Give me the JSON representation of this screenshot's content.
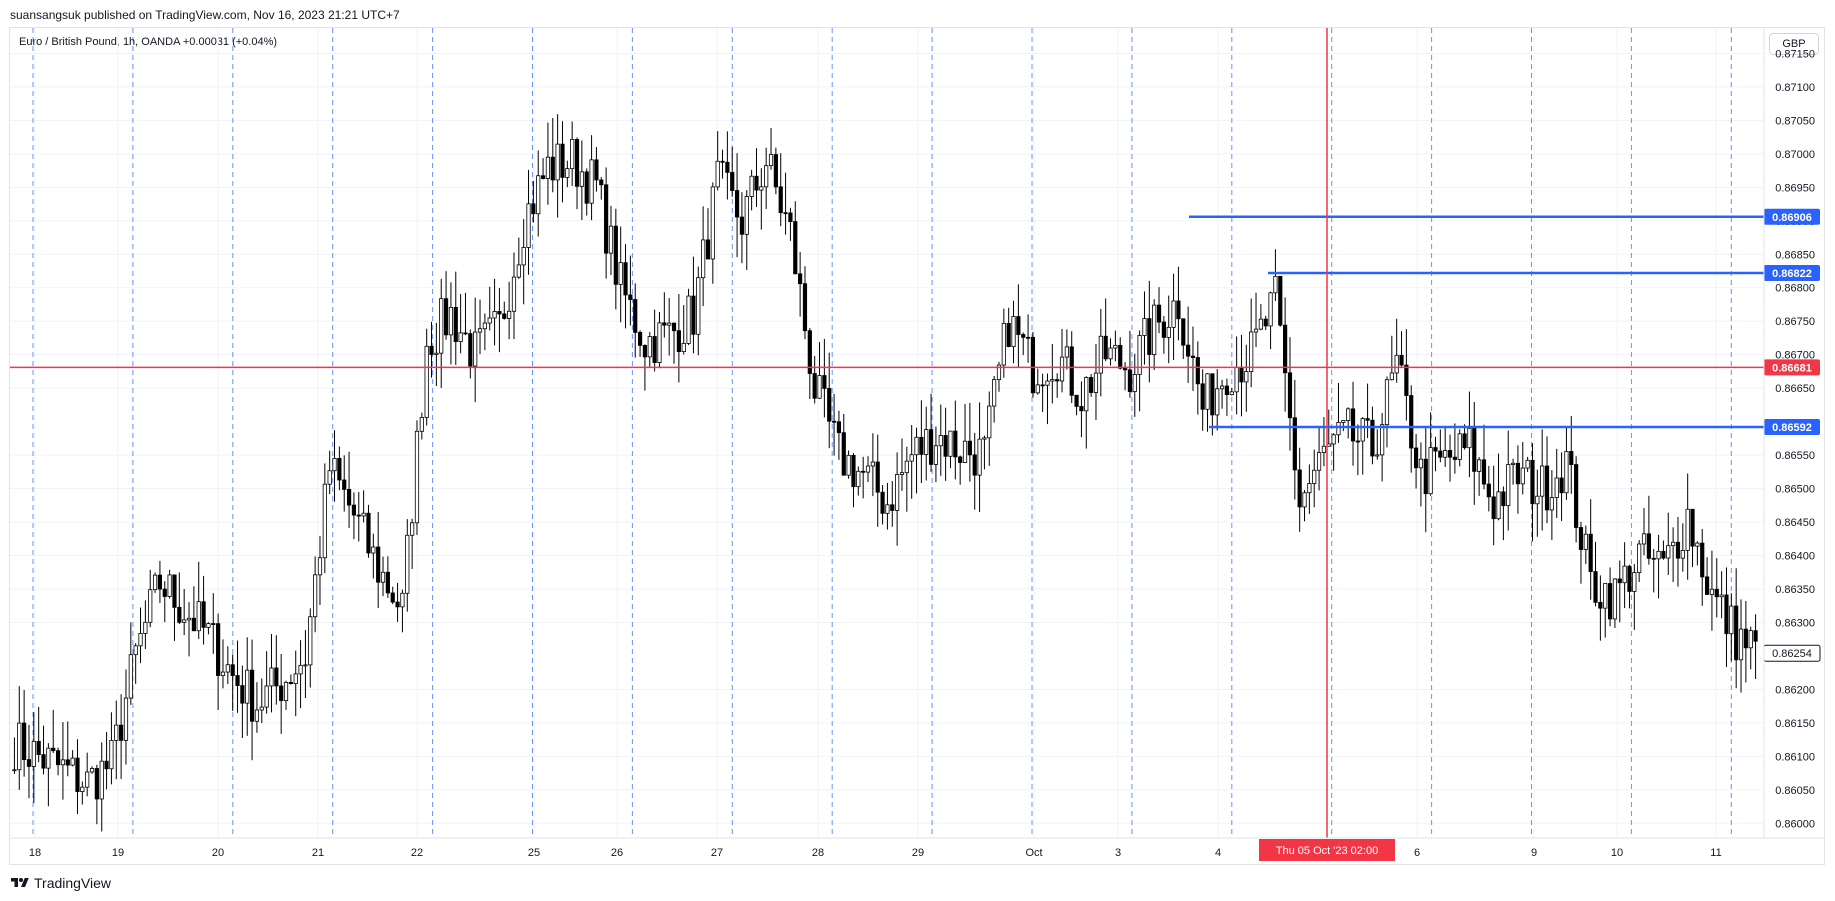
{
  "header": {
    "publish_text": "suansangsuk published on TradingView.com, Nov 16, 2023 21:21 UTC+7",
    "symbol_text": "Euro / British Pound, 1h, OANDA  +0.00031 (+0.04%)",
    "currency": "GBP"
  },
  "footer": {
    "brand": "TradingView",
    "logo_icon": "tradingview-logo-icon"
  },
  "colors": {
    "candle": "#000000",
    "grid": "#f0f3fa",
    "session_line": "#2962ff",
    "level_line": "#2962ff",
    "hline_red": "#f23645",
    "crosshair": "#f23645",
    "last_price_border": "#131722"
  },
  "chart_data": {
    "type": "candlestick",
    "symbol": "Euro / British Pound",
    "interval": "1h",
    "exchange": "OANDA",
    "change": "+0.00031",
    "change_pct": "+0.04%",
    "ylim": [
      0.85978,
      0.87188
    ],
    "y_ticks": [
      "0.87150",
      "0.87100",
      "0.87050",
      "0.87000",
      "0.86950",
      "0.86900",
      "0.86850",
      "0.86800",
      "0.86750",
      "0.86700",
      "0.86650",
      "0.86550",
      "0.86500",
      "0.86450",
      "0.86400",
      "0.86350",
      "0.86300",
      "0.86200",
      "0.86150",
      "0.86100",
      "0.86050",
      "0.86000"
    ],
    "x_ticks": [
      "18",
      "19",
      "20",
      "21",
      "22",
      "25",
      "26",
      "27",
      "28",
      "29",
      "Oct",
      "3",
      "4",
      "6",
      "9",
      "10",
      "11"
    ],
    "crosshair_label": "Thu 05 Oct '23   02:00",
    "crosshair_price": 0.86681,
    "horizontal_levels": [
      {
        "value": 0.86906,
        "label": "0.86906",
        "style": "blue",
        "start": "Oct 3"
      },
      {
        "value": 0.86822,
        "label": "0.86822",
        "style": "blue",
        "start": "Oct 4"
      },
      {
        "value": 0.86681,
        "label": "0.86681",
        "style": "red",
        "start": "Sep 18"
      },
      {
        "value": 0.86592,
        "label": "0.86592",
        "style": "blue",
        "start": "Oct 3"
      }
    ],
    "last_price": {
      "value": 0.86254,
      "label": "0.86254"
    },
    "session_separators": 18,
    "closes_by_day": [
      {
        "day": "18",
        "closes": [
          0.8612,
          0.861,
          0.8608,
          0.8606,
          0.8609
        ]
      },
      {
        "day": "19",
        "closes": [
          0.8609,
          0.8625,
          0.8636,
          0.8632,
          0.8628
        ]
      },
      {
        "day": "20",
        "closes": [
          0.8628,
          0.8622,
          0.8618,
          0.8621,
          0.8625
        ]
      },
      {
        "day": "21",
        "closes": [
          0.8625,
          0.8653,
          0.8646,
          0.8638,
          0.8632
        ]
      },
      {
        "day": "22",
        "closes": [
          0.8632,
          0.8672,
          0.8676,
          0.867,
          0.8674
        ]
      },
      {
        "day": "25",
        "closes": [
          0.8674,
          0.869,
          0.8698,
          0.8699,
          0.8695
        ]
      },
      {
        "day": "26",
        "closes": [
          0.8695,
          0.868,
          0.8672,
          0.8673,
          0.8676
        ]
      },
      {
        "day": "27",
        "closes": [
          0.8676,
          0.8696,
          0.869,
          0.8699,
          0.8688
        ]
      },
      {
        "day": "28",
        "closes": [
          0.8688,
          0.8665,
          0.8655,
          0.8652,
          0.8648
        ]
      },
      {
        "day": "29",
        "closes": [
          0.8648,
          0.8655,
          0.8658,
          0.8656,
          0.8655
        ]
      },
      {
        "day": "Oct",
        "closes": [
          0.8655,
          0.8675,
          0.8668,
          0.867,
          0.8664
        ]
      },
      {
        "day": "3",
        "closes": [
          0.8664,
          0.867,
          0.8668,
          0.8674,
          0.8678
        ]
      },
      {
        "day": "4",
        "closes": [
          0.8678,
          0.8662,
          0.8668,
          0.867,
          0.8678
        ]
      },
      {
        "day": "5",
        "closes": [
          0.8678,
          0.8648,
          0.8655,
          0.8658,
          0.8656
        ]
      },
      {
        "day": "6",
        "closes": [
          0.8656,
          0.8668,
          0.8652,
          0.8654,
          0.8656
        ]
      },
      {
        "day": "9",
        "closes": [
          0.8656,
          0.8648,
          0.8652,
          0.865,
          0.8654
        ]
      },
      {
        "day": "10",
        "closes": [
          0.8654,
          0.8636,
          0.8634,
          0.864,
          0.8638
        ]
      },
      {
        "day": "11",
        "closes": [
          0.8638,
          0.8646,
          0.8634,
          0.8628,
          0.86254
        ]
      }
    ]
  }
}
